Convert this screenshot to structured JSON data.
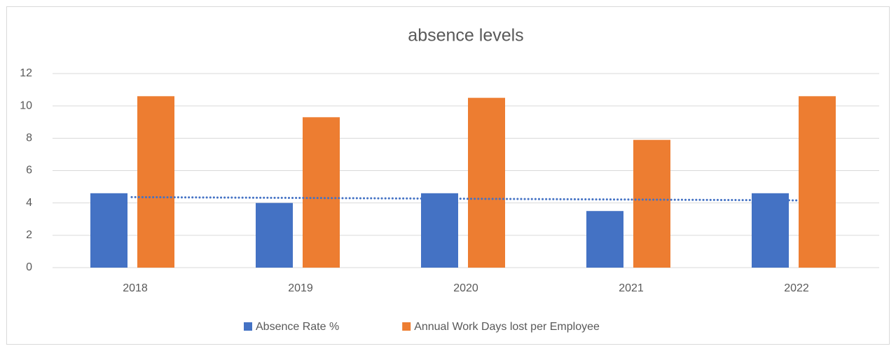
{
  "chart_data": {
    "type": "bar",
    "title": "absence levels",
    "categories": [
      "2018",
      "2019",
      "2020",
      "2021",
      "2022"
    ],
    "series": [
      {
        "name": "Absence Rate %",
        "color": "#4472c4",
        "values": [
          4.6,
          4.0,
          4.6,
          3.5,
          4.6
        ],
        "trendline": true
      },
      {
        "name": "Annual Work Days lost per Employee",
        "color": "#ed7d31",
        "values": [
          10.6,
          9.3,
          10.5,
          7.9,
          10.6
        ]
      }
    ],
    "ylim": [
      0,
      12
    ],
    "yticks": [
      0,
      2,
      4,
      6,
      8,
      10,
      12
    ],
    "grid": true,
    "legend": "bottom"
  }
}
